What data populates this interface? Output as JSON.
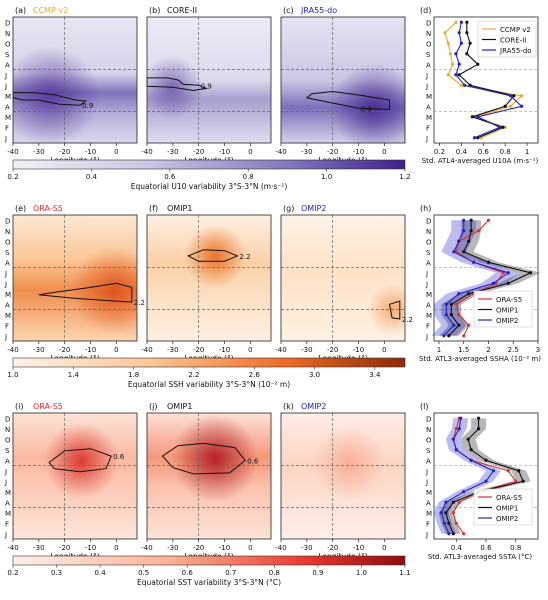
{
  "chart_data": {
    "type": "heatmap",
    "months": [
      "J",
      "F",
      "M",
      "A",
      "M",
      "J",
      "J",
      "A",
      "S",
      "O",
      "N",
      "D"
    ],
    "map_x_ticks": [
      -40,
      -30,
      -20,
      -10,
      0
    ],
    "map_xlabel": "Longitude (°)",
    "rows": [
      {
        "id": "u10",
        "panels": [
          {
            "tag": "(a)",
            "name": "CCMP v2",
            "title_color": "#f5a623",
            "contour_label": "0.9",
            "contour": [
              [
                -40,
                4.3
              ],
              [
                -32,
                4.3
              ],
              [
                -24,
                4.1
              ],
              [
                -16,
                3.6
              ],
              [
                -12,
                3.5
              ],
              [
                -14,
                3.1
              ],
              [
                -22,
                3.2
              ],
              [
                -30,
                3.6
              ],
              [
                -36,
                3.6
              ],
              [
                -40,
                3.8
              ]
            ]
          },
          {
            "tag": "(b)",
            "name": "CORE-II",
            "title_color": "#111111",
            "contour_label": "0.9",
            "contour": [
              [
                -40,
                5.7
              ],
              [
                -32,
                5.7
              ],
              [
                -28,
                5.5
              ],
              [
                -26,
                5.1
              ],
              [
                -20,
                5.0
              ],
              [
                -17,
                4.7
              ],
              [
                -22,
                4.5
              ],
              [
                -30,
                4.8
              ],
              [
                -40,
                4.9
              ]
            ]
          },
          {
            "tag": "(c)",
            "name": "JRA55-do",
            "title_color": "#2222cc",
            "contour_label": "0.9",
            "contour": [
              [
                -20,
                4.4
              ],
              [
                -8,
                4.0
              ],
              [
                2,
                3.6
              ],
              [
                2,
                2.7
              ],
              [
                -10,
                2.8
              ],
              [
                -22,
                3.4
              ],
              [
                -30,
                3.8
              ],
              [
                -28,
                4.2
              ]
            ]
          }
        ],
        "colorbar": {
          "label": "Equatorial U10 variability 3°S-3°N (m·s⁻¹)",
          "ticks": [
            "0.2",
            "0.4",
            "0.6",
            "0.8",
            "1.0",
            "1.2"
          ],
          "range": [
            0.2,
            1.2
          ]
        },
        "line": {
          "tag": "(d)",
          "xlabel": "Std. ATL4-averaged U10A (m·s⁻¹)",
          "xticks": [
            0.2,
            0.4,
            0.6,
            0.8,
            1.0
          ],
          "xlim": [
            0.15,
            1.1
          ],
          "legend": [
            {
              "name": "CCMP v2",
              "color": "#f5a623"
            },
            {
              "name": "CORE-II",
              "color": "#111111"
            },
            {
              "name": "JRA55-do",
              "color": "#2222cc"
            }
          ],
          "series": [
            {
              "name": "CCMP v2",
              "color": "#f5a623",
              "values": [
                0.58,
                0.8,
                0.52,
                0.85,
                0.95,
                0.4,
                0.28,
                0.32,
                0.3,
                0.28,
                0.25,
                0.35
              ],
              "band": null
            },
            {
              "name": "CORE-II",
              "color": "#111111",
              "values": [
                0.55,
                0.78,
                0.5,
                0.8,
                0.88,
                0.48,
                0.38,
                0.55,
                0.45,
                0.48,
                0.45,
                0.45
              ],
              "band": null
            },
            {
              "name": "JRA55-do",
              "color": "#2222cc",
              "values": [
                0.52,
                0.75,
                0.55,
                0.95,
                0.85,
                0.43,
                0.35,
                0.38,
                0.35,
                0.4,
                0.38,
                0.4
              ],
              "band": null
            }
          ]
        }
      },
      {
        "id": "ssh",
        "panels": [
          {
            "tag": "(e)",
            "name": "ORA-S5",
            "title_color": "#e03030",
            "contour_label": "2.2",
            "contour": [
              [
                -22,
                4.2
              ],
              [
                -10,
                4.6
              ],
              [
                0,
                5.0
              ],
              [
                6,
                4.6
              ],
              [
                6,
                3.2
              ],
              [
                -6,
                3.4
              ],
              [
                -18,
                3.6
              ],
              [
                -30,
                3.9
              ]
            ]
          },
          {
            "tag": "(f)",
            "name": "OMIP1",
            "title_color": "#111111",
            "contour_label": "2.2",
            "contour": [
              [
                -24,
                7.6
              ],
              [
                -18,
                8.2
              ],
              [
                -10,
                8.1
              ],
              [
                -5,
                7.6
              ],
              [
                -10,
                7.1
              ],
              [
                -20,
                7.1
              ]
            ]
          },
          {
            "tag": "(g)",
            "name": "OMIP2",
            "title_color": "#2222cc",
            "contour_label": "2.2",
            "contour": [
              [
                2,
                3.0
              ],
              [
                6,
                3.3
              ],
              [
                6,
                1.6
              ],
              [
                3,
                1.7
              ]
            ]
          }
        ],
        "colorbar": {
          "label": "Equatorial SSH variability 3°S-3°N (10⁻² m)",
          "ticks": [
            "1.0",
            "1.4",
            "1.8",
            "2.2",
            "2.6",
            "3.0",
            "3.4"
          ],
          "range": [
            1.0,
            3.6
          ]
        },
        "line": {
          "tag": "(h)",
          "xlabel": "Std. ATL3-averaged SSHA (10⁻² m)",
          "xticks": [
            1.0,
            1.5,
            2.0,
            2.5,
            3.0
          ],
          "xlim": [
            0.9,
            3.0
          ],
          "legend": [
            {
              "name": "ORA-S5",
              "color": "#e03030"
            },
            {
              "name": "OMIP1",
              "color": "#111111"
            },
            {
              "name": "OMIP2",
              "color": "#2222cc"
            }
          ],
          "series": [
            {
              "name": "ORA-S5",
              "color": "#e03030",
              "values": [
                1.5,
                1.6,
                1.4,
                1.35,
                1.7,
                2.15,
                2.3,
                1.7,
                1.35,
                1.4,
                1.8,
                2.0
              ],
              "band": null
            },
            {
              "name": "OMIP1",
              "color": "#111111",
              "values": [
                1.2,
                1.4,
                1.25,
                1.25,
                1.6,
                2.4,
                2.85,
                2.0,
                1.5,
                1.6,
                1.65,
                1.65
              ],
              "band": 0.2
            },
            {
              "name": "OMIP2",
              "color": "#2222cc",
              "values": [
                1.1,
                1.3,
                1.15,
                1.15,
                1.4,
                2.1,
                2.4,
                1.7,
                1.3,
                1.4,
                1.5,
                1.5
              ],
              "band": 0.25
            }
          ]
        }
      },
      {
        "id": "sst",
        "panels": [
          {
            "tag": "(i)",
            "name": "ORA-S5",
            "title_color": "#e03030",
            "contour_label": "0.6",
            "contour": [
              [
                -26,
                6.8
              ],
              [
                -20,
                7.9
              ],
              [
                -10,
                8.1
              ],
              [
                -2,
                7.4
              ],
              [
                -4,
                6.2
              ],
              [
                -14,
                5.9
              ],
              [
                -24,
                6.2
              ]
            ]
          },
          {
            "tag": "(j)",
            "name": "OMIP1",
            "title_color": "#111111",
            "contour_label": "0.6",
            "contour": [
              [
                -34,
                7.4
              ],
              [
                -28,
                8.4
              ],
              [
                -18,
                8.6
              ],
              [
                -6,
                8.2
              ],
              [
                -2,
                7.0
              ],
              [
                -8,
                5.8
              ],
              [
                -22,
                5.7
              ],
              [
                -30,
                6.3
              ]
            ]
          },
          {
            "tag": "(k)",
            "name": "OMIP2",
            "title_color": "#2222cc",
            "contour_label": "",
            "contour": []
          }
        ],
        "colorbar": {
          "label": "Equatorial SST variability 3°S-3°N (°C)",
          "ticks": [
            "0.2",
            "0.3",
            "0.4",
            "0.5",
            "0.6",
            "0.7",
            "0.8",
            "0.9",
            "1.0",
            "1.1"
          ],
          "range": [
            0.2,
            1.1
          ]
        },
        "line": {
          "tag": "(l)",
          "xlabel": "Std. ATL3-averaged SSTA (°C)",
          "xticks": [
            0.4,
            0.6,
            0.8
          ],
          "xlim": [
            0.25,
            0.95
          ],
          "legend": [
            {
              "name": "ORA-S5",
              "color": "#e03030"
            },
            {
              "name": "OMIP1",
              "color": "#111111"
            },
            {
              "name": "OMIP2",
              "color": "#2222cc"
            }
          ],
          "series": [
            {
              "name": "ORA-S5",
              "color": "#e03030",
              "values": [
                0.45,
                0.4,
                0.38,
                0.42,
                0.55,
                0.8,
                0.75,
                0.5,
                0.4,
                0.38,
                0.4,
                0.42
              ],
              "band": null
            },
            {
              "name": "OMIP1",
              "color": "#111111",
              "values": [
                0.38,
                0.35,
                0.33,
                0.38,
                0.55,
                0.85,
                0.82,
                0.6,
                0.5,
                0.48,
                0.55,
                0.55
              ],
              "band": 0.05
            },
            {
              "name": "OMIP2",
              "color": "#2222cc",
              "values": [
                0.35,
                0.32,
                0.3,
                0.33,
                0.45,
                0.6,
                0.65,
                0.5,
                0.4,
                0.38,
                0.42,
                0.43
              ],
              "band": 0.05
            }
          ]
        }
      }
    ]
  }
}
